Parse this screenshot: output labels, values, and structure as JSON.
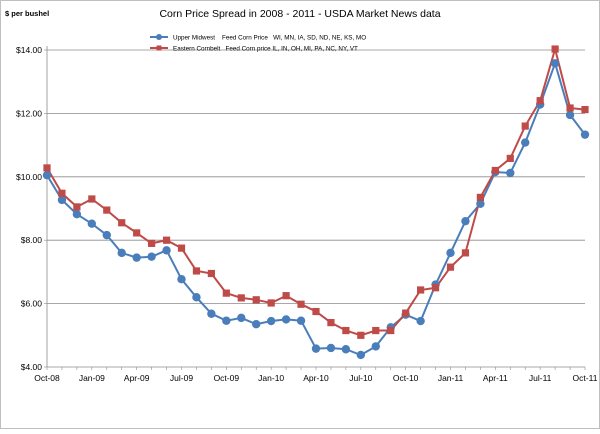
{
  "chart_data": {
    "type": "line",
    "title": "Corn Price Spread in 2008 - 2011 - USDA Market News data",
    "ylabel": "$ per bushel",
    "xlabel": "",
    "ylim": [
      4,
      14
    ],
    "yticks": [
      {
        "value": 4,
        "label": "$4.00"
      },
      {
        "value": 6,
        "label": "$6.00"
      },
      {
        "value": 8,
        "label": "$8.00"
      },
      {
        "value": 10,
        "label": "$10.00"
      },
      {
        "value": 12,
        "label": "$12.00"
      },
      {
        "value": 14,
        "label": "$14.00"
      }
    ],
    "x": [
      "Oct-08",
      "Nov-08",
      "Dec-08",
      "Jan-09",
      "Feb-09",
      "Mar-09",
      "Apr-09",
      "May-09",
      "Jun-09",
      "Jul-09",
      "Aug-09",
      "Sep-09",
      "Oct-09",
      "Nov-09",
      "Dec-09",
      "Jan-10",
      "Feb-10",
      "Mar-10",
      "Apr-10",
      "May-10",
      "Jun-10",
      "Jul-10",
      "Aug-10",
      "Sep-10",
      "Oct-10",
      "Nov-10",
      "Dec-10",
      "Jan-11",
      "Feb-11",
      "Mar-11",
      "Apr-11",
      "May-11",
      "Jun-11",
      "Jul-11",
      "Aug-11",
      "Sep-11",
      "Oct-11"
    ],
    "xticks": [
      {
        "index": 0,
        "label": "Oct-08"
      },
      {
        "index": 3,
        "label": "Jan-09"
      },
      {
        "index": 6,
        "label": "Apr-09"
      },
      {
        "index": 9,
        "label": "Jul-09"
      },
      {
        "index": 12,
        "label": "Oct-09"
      },
      {
        "index": 15,
        "label": "Jan-10"
      },
      {
        "index": 18,
        "label": "Apr-10"
      },
      {
        "index": 21,
        "label": "Jul-10"
      },
      {
        "index": 24,
        "label": "Oct-10"
      },
      {
        "index": 27,
        "label": "Jan-11"
      },
      {
        "index": 30,
        "label": "Apr-11"
      },
      {
        "index": 33,
        "label": "Jul-11"
      },
      {
        "index": 36,
        "label": "Oct-11"
      }
    ],
    "grid": "horizontal",
    "legend_position": "top-left",
    "series": [
      {
        "name": "Upper Midwest    Feed Corn Price   WI, MN, IA, SD, ND, NE, KS, MO",
        "color": "#4a7ebb",
        "marker": "circle",
        "values": [
          10.05,
          9.27,
          8.82,
          8.52,
          8.16,
          7.6,
          7.45,
          7.48,
          7.68,
          6.77,
          6.2,
          5.68,
          5.46,
          5.55,
          5.35,
          5.45,
          5.5,
          5.46,
          4.58,
          4.6,
          4.56,
          4.38,
          4.65,
          5.25,
          5.65,
          5.45,
          6.6,
          7.6,
          8.6,
          9.15,
          10.15,
          10.12,
          11.08,
          12.28,
          13.58,
          11.95,
          11.33
        ]
      },
      {
        "name": "Eastern Cornbelt   Feed Corn price IL, IN, OH, MI, PA, NC, NY, VT",
        "color": "#be4b48",
        "marker": "square",
        "values": [
          10.28,
          9.48,
          9.05,
          9.3,
          8.95,
          8.55,
          8.23,
          7.9,
          8.0,
          7.75,
          7.03,
          6.95,
          6.33,
          6.18,
          6.12,
          6.02,
          6.25,
          5.98,
          5.75,
          5.4,
          5.15,
          5.0,
          5.15,
          5.15,
          5.7,
          6.43,
          6.5,
          7.15,
          7.6,
          9.35,
          10.2,
          10.58,
          11.6,
          12.4,
          14.03,
          12.17,
          12.12
        ]
      }
    ]
  }
}
